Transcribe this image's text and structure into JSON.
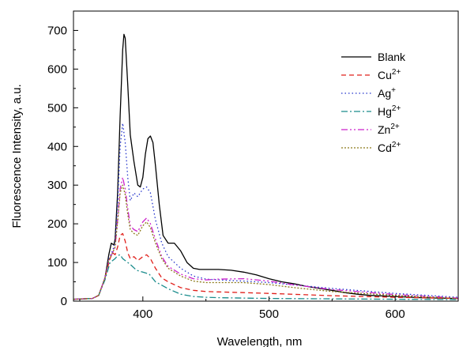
{
  "chart_data": {
    "type": "line",
    "title": "",
    "xlabel": "Wavelength, nm",
    "ylabel": "Fluorescence Intensity, a.u.",
    "xlim": [
      345,
      650
    ],
    "ylim": [
      0,
      750
    ],
    "xticks": [
      "400",
      "500",
      "600"
    ],
    "yticks": [
      "0",
      "100",
      "200",
      "300",
      "400",
      "500",
      "600",
      "700"
    ],
    "grid": false,
    "legend_position": "top-right",
    "series": [
      {
        "name": "Blank",
        "ion_base": "",
        "ion_charge": "",
        "color": "#000000",
        "dash": "solid",
        "x": [
          345,
          360,
          365,
          370,
          373,
          375,
          377,
          378,
          380,
          382,
          384,
          385,
          386,
          388,
          390,
          393,
          396,
          398,
          400,
          402,
          404,
          406,
          408,
          410,
          413,
          416,
          420,
          425,
          430,
          435,
          440,
          445,
          450,
          460,
          470,
          480,
          490,
          500,
          510,
          520,
          530,
          540,
          550,
          560,
          570,
          580,
          600,
          620,
          650
        ],
        "y": [
          5,
          7,
          15,
          60,
          120,
          150,
          145,
          160,
          280,
          480,
          650,
          690,
          680,
          560,
          430,
          360,
          300,
          295,
          320,
          380,
          420,
          427,
          410,
          350,
          250,
          170,
          150,
          150,
          130,
          100,
          85,
          82,
          82,
          82,
          80,
          75,
          68,
          58,
          50,
          45,
          38,
          33,
          28,
          22,
          18,
          15,
          12,
          9,
          7
        ]
      },
      {
        "name": "Cu2+",
        "ion_base": "Cu",
        "ion_charge": "2+",
        "color": "#e0201b",
        "dash": "6,4",
        "x": [
          345,
          360,
          365,
          370,
          374,
          376,
          378,
          380,
          382,
          384,
          386,
          388,
          390,
          393,
          396,
          400,
          403,
          406,
          410,
          415,
          420,
          430,
          440,
          450,
          460,
          480,
          500,
          550,
          600,
          650
        ],
        "y": [
          5,
          7,
          15,
          60,
          110,
          125,
          120,
          140,
          170,
          175,
          155,
          125,
          110,
          115,
          105,
          115,
          120,
          110,
          85,
          60,
          50,
          35,
          28,
          25,
          24,
          22,
          20,
          14,
          10,
          7
        ]
      },
      {
        "name": "Ag+",
        "ion_base": "Ag",
        "ion_charge": "+",
        "color": "#2233cc",
        "dash": "1.5,3",
        "x": [
          345,
          360,
          365,
          370,
          373,
          376,
          378,
          380,
          382,
          384,
          386,
          388,
          390,
          393,
          396,
          400,
          403,
          406,
          410,
          415,
          420,
          430,
          440,
          450,
          460,
          480,
          500,
          550,
          600,
          650
        ],
        "y": [
          5,
          7,
          15,
          60,
          110,
          130,
          150,
          250,
          400,
          460,
          410,
          320,
          260,
          280,
          270,
          290,
          295,
          280,
          210,
          150,
          115,
          85,
          65,
          57,
          55,
          52,
          48,
          33,
          20,
          10
        ]
      },
      {
        "name": "Hg2+",
        "ion_base": "Hg",
        "ion_charge": "2+",
        "color": "#1a8c8c",
        "dash": "8,3,2,3",
        "x": [
          345,
          360,
          365,
          370,
          374,
          378,
          380,
          382,
          384,
          386,
          390,
          395,
          400,
          405,
          410,
          420,
          430,
          440,
          450,
          460,
          480,
          500,
          550,
          600,
          650
        ],
        "y": [
          5,
          7,
          15,
          55,
          100,
          110,
          118,
          120,
          110,
          105,
          95,
          80,
          75,
          70,
          50,
          32,
          18,
          12,
          10,
          9,
          8,
          7,
          6,
          5,
          4
        ]
      },
      {
        "name": "Zn2+",
        "ion_base": "Zn",
        "ion_charge": "2+",
        "color": "#cc22cc",
        "dash": "8,3,2,3,2,3",
        "x": [
          345,
          360,
          365,
          370,
          373,
          376,
          378,
          380,
          382,
          384,
          386,
          388,
          390,
          393,
          396,
          400,
          403,
          406,
          410,
          415,
          420,
          430,
          440,
          450,
          460,
          480,
          500,
          520,
          550,
          600,
          650
        ],
        "y": [
          5,
          7,
          15,
          60,
          105,
          125,
          140,
          210,
          290,
          320,
          290,
          240,
          195,
          185,
          180,
          205,
          215,
          200,
          160,
          115,
          90,
          70,
          58,
          55,
          57,
          58,
          52,
          42,
          30,
          17,
          8
        ]
      },
      {
        "name": "Cd2+",
        "ion_base": "Cd",
        "ion_charge": "2+",
        "color": "#8c7a1a",
        "dash": "2,2",
        "x": [
          345,
          360,
          365,
          370,
          373,
          376,
          378,
          380,
          382,
          384,
          386,
          388,
          390,
          393,
          396,
          400,
          403,
          406,
          410,
          415,
          420,
          430,
          440,
          450,
          460,
          480,
          500,
          520,
          550,
          600,
          650
        ],
        "y": [
          5,
          7,
          15,
          60,
          105,
          125,
          140,
          205,
          280,
          300,
          275,
          225,
          185,
          175,
          170,
          195,
          205,
          190,
          150,
          110,
          85,
          65,
          52,
          48,
          48,
          48,
          43,
          35,
          25,
          15,
          7
        ]
      }
    ]
  }
}
